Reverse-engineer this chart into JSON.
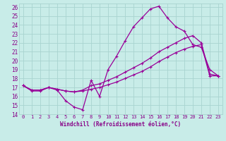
{
  "title": "",
  "xlabel": "Windchill (Refroidissement éolien,°C)",
  "ylabel": "",
  "bg_color": "#c8ece8",
  "grid_color": "#a8d4d0",
  "line_color": "#990099",
  "text_color": "#880088",
  "xlim": [
    -0.5,
    23.5
  ],
  "ylim": [
    14,
    26.4
  ],
  "xticks": [
    0,
    1,
    2,
    3,
    4,
    5,
    6,
    7,
    8,
    9,
    10,
    11,
    12,
    13,
    14,
    15,
    16,
    17,
    18,
    19,
    20,
    21,
    22,
    23
  ],
  "yticks": [
    14,
    15,
    16,
    17,
    18,
    19,
    20,
    21,
    22,
    23,
    24,
    25,
    26
  ],
  "line1_x": [
    0,
    1,
    2,
    3,
    4,
    5,
    6,
    7,
    8,
    9,
    10,
    11,
    12,
    13,
    14,
    15,
    16,
    17,
    18,
    19,
    20,
    21,
    22,
    23
  ],
  "line1_y": [
    17.2,
    16.6,
    16.6,
    17.0,
    16.7,
    15.5,
    14.8,
    14.5,
    17.8,
    16.0,
    19.0,
    20.5,
    22.2,
    23.8,
    24.8,
    25.8,
    26.1,
    24.8,
    23.8,
    23.3,
    21.8,
    21.5,
    19.0,
    18.3
  ],
  "line2_x": [
    0,
    1,
    2,
    3,
    4,
    5,
    6,
    7,
    8,
    9,
    10,
    11,
    12,
    13,
    14,
    15,
    16,
    17,
    18,
    19,
    20,
    21,
    22,
    23
  ],
  "line2_y": [
    17.2,
    16.7,
    16.7,
    17.0,
    16.8,
    16.6,
    16.5,
    16.7,
    17.2,
    17.4,
    17.8,
    18.2,
    18.7,
    19.2,
    19.7,
    20.3,
    21.0,
    21.5,
    22.0,
    22.5,
    22.8,
    22.0,
    18.5,
    18.3
  ],
  "line3_x": [
    0,
    1,
    2,
    3,
    4,
    5,
    6,
    7,
    8,
    9,
    10,
    11,
    12,
    13,
    14,
    15,
    16,
    17,
    18,
    19,
    20,
    21,
    22,
    23
  ],
  "line3_y": [
    17.2,
    16.7,
    16.7,
    17.0,
    16.8,
    16.6,
    16.5,
    16.6,
    16.8,
    17.0,
    17.3,
    17.6,
    18.0,
    18.4,
    18.8,
    19.3,
    19.9,
    20.4,
    20.9,
    21.3,
    21.6,
    21.8,
    18.3,
    18.3
  ]
}
